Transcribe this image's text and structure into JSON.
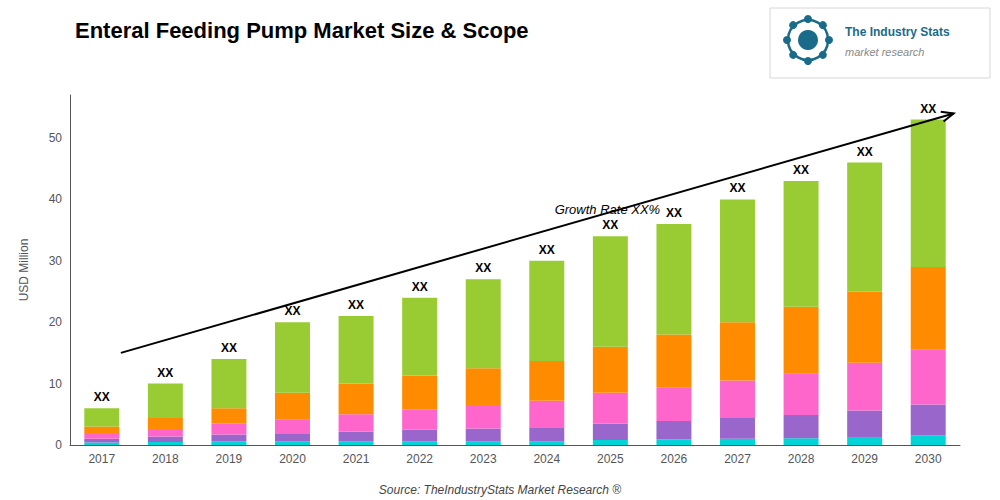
{
  "chart_data": {
    "type": "bar",
    "title": "Enteral Feeding Pump Market Size & Scope",
    "ylabel": "USD Million",
    "source": "Source: TheIndustryStats Market Research ®",
    "categories": [
      "2017",
      "2018",
      "2019",
      "2020",
      "2021",
      "2022",
      "2023",
      "2024",
      "2025",
      "2026",
      "2027",
      "2028",
      "2029",
      "2030"
    ],
    "stacked": true,
    "series": [
      {
        "color": "#00D4D4",
        "values": [
          0.4,
          0.5,
          0.6,
          0.6,
          0.6,
          0.6,
          0.6,
          0.6,
          0.8,
          0.9,
          1.0,
          1.1,
          1.3,
          1.6
        ]
      },
      {
        "color": "#9966CC",
        "values": [
          0.6,
          0.9,
          1.1,
          1.3,
          1.6,
          1.9,
          2.1,
          2.3,
          2.7,
          3.0,
          3.4,
          3.8,
          4.3,
          5.0
        ]
      },
      {
        "color": "#FF66CC",
        "values": [
          0.8,
          1.2,
          1.8,
          2.3,
          2.8,
          3.3,
          3.8,
          4.3,
          5.0,
          5.5,
          6.1,
          6.8,
          7.8,
          9.0
        ]
      },
      {
        "color": "#FF8C00",
        "values": [
          1.2,
          1.8,
          2.5,
          4.3,
          5.0,
          5.5,
          6.0,
          6.5,
          7.5,
          8.6,
          9.5,
          10.8,
          11.6,
          13.4
        ]
      },
      {
        "color": "#99CC33",
        "values": [
          3.0,
          5.6,
          8.0,
          11.5,
          11.0,
          12.7,
          14.5,
          16.3,
          18.0,
          18.0,
          20.0,
          20.5,
          21.0,
          24.0
        ]
      }
    ],
    "ylim": [
      0,
      57
    ],
    "yticks": [
      0,
      10,
      20,
      30,
      40,
      50
    ],
    "grid": false,
    "annotations": {
      "bar_top": "XX",
      "growth": "Growth Rate XX%",
      "arrow": {
        "y_start": 15,
        "y_end": 54
      }
    },
    "logo": {
      "texts": [
        "The Industry Stats",
        "market research"
      ],
      "color": "#1A6B8A",
      "text_color": "#888888"
    }
  }
}
